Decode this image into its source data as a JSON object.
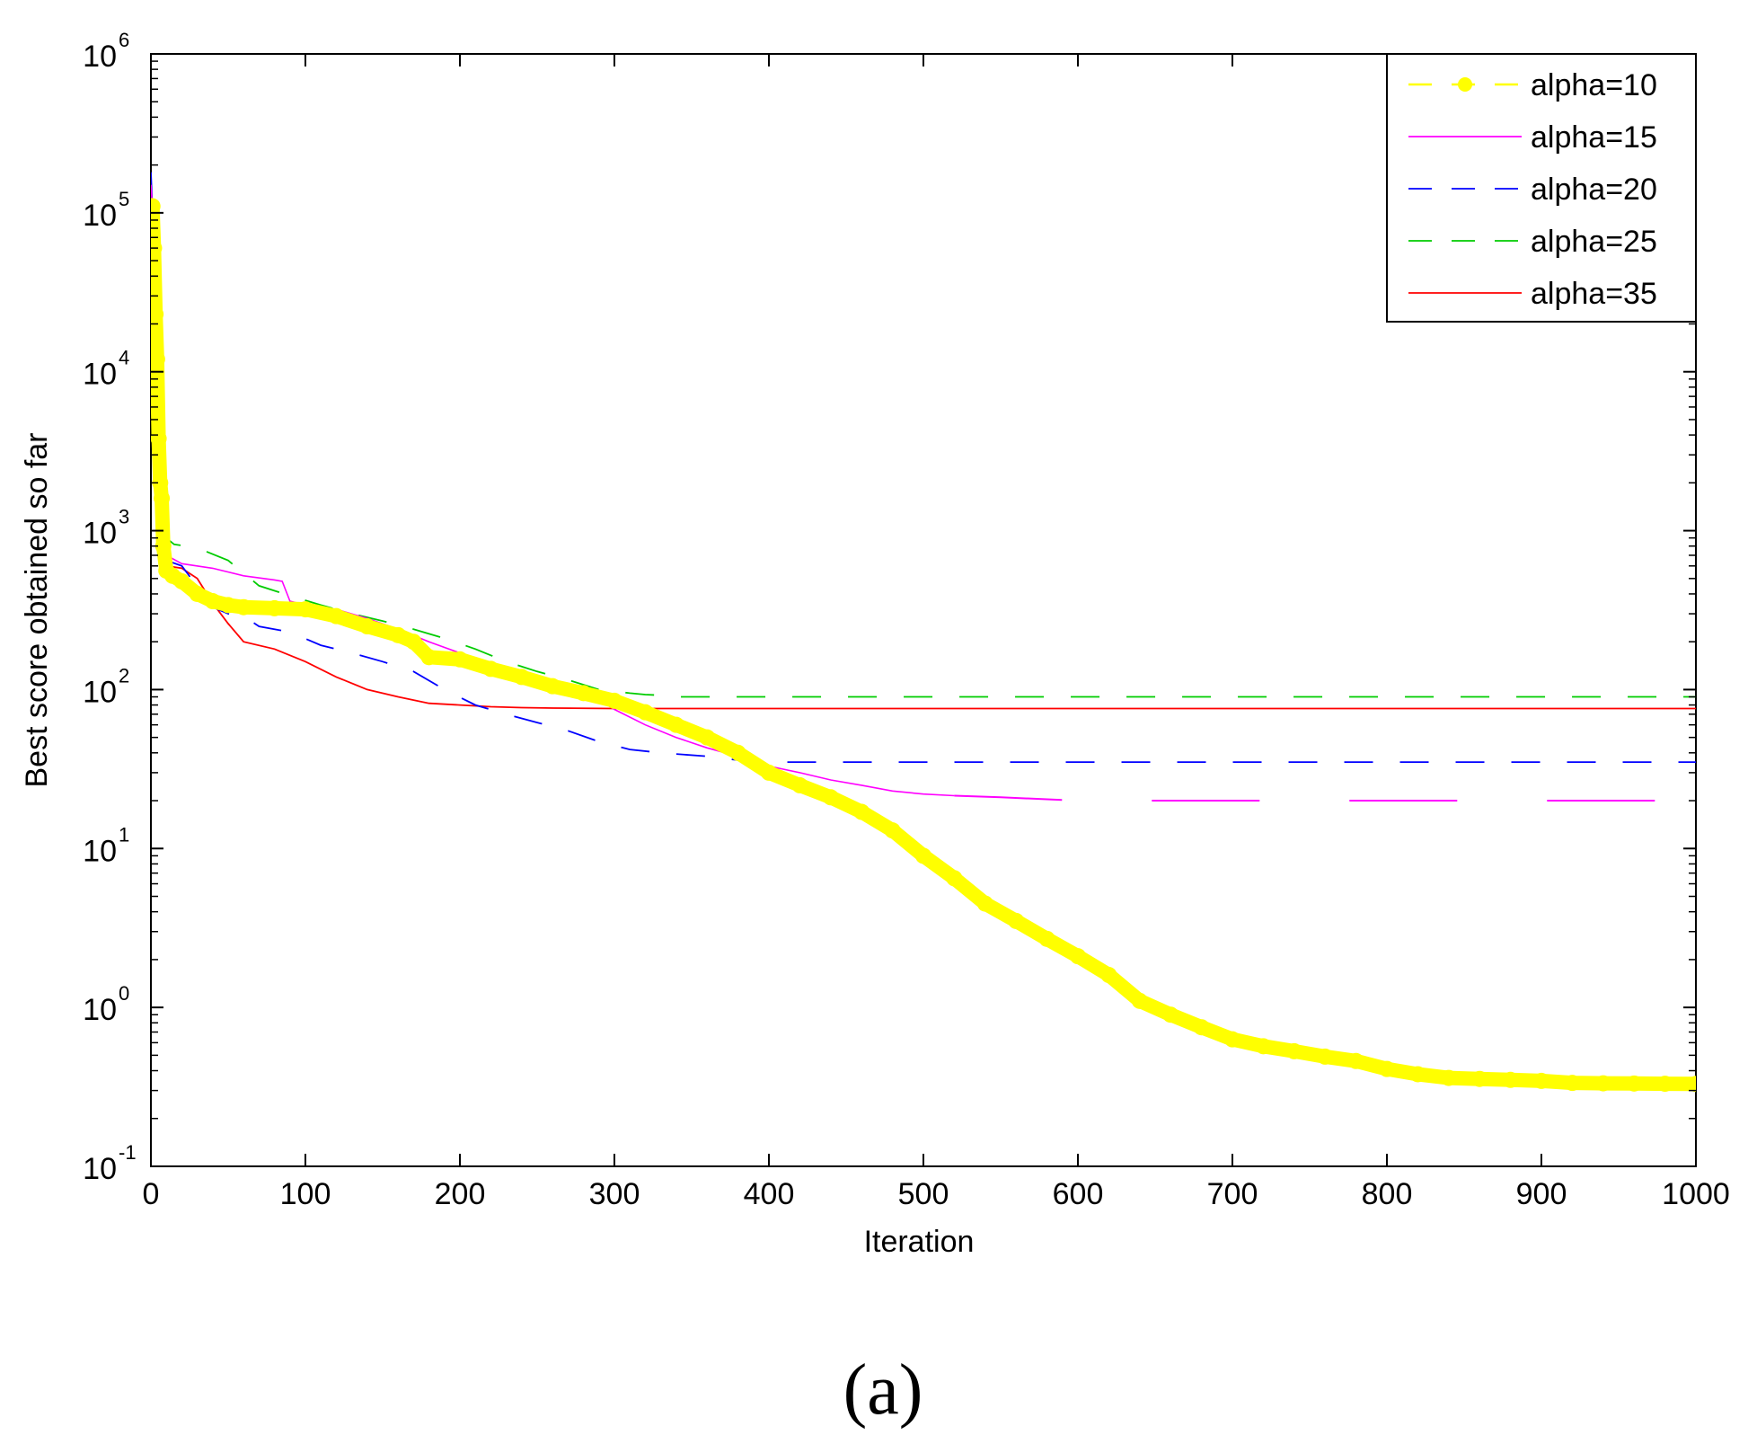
{
  "chart_data": {
    "type": "line",
    "xlabel": "Iteration",
    "ylabel": "Best score obtained so far",
    "xlim": [
      0,
      1000
    ],
    "ylim": [
      0.1,
      1000000
    ],
    "yscale": "log",
    "xticks": [
      "0",
      "100",
      "200",
      "300",
      "400",
      "500",
      "600",
      "700",
      "800",
      "900",
      "1000"
    ],
    "yticks": [
      {
        "base": "10",
        "exp": "-1"
      },
      {
        "base": "10",
        "exp": "0"
      },
      {
        "base": "10",
        "exp": "1"
      },
      {
        "base": "10",
        "exp": "2"
      },
      {
        "base": "10",
        "exp": "3"
      },
      {
        "base": "10",
        "exp": "4"
      },
      {
        "base": "10",
        "exp": "5"
      },
      {
        "base": "10",
        "exp": "6"
      }
    ],
    "legend_position": "top-right",
    "panel_label": "(a)",
    "series": [
      {
        "name": "alpha=10",
        "color": "#ffff00",
        "style": "dashed-dot-marker",
        "points": [
          [
            0,
            110000
          ],
          [
            1,
            110000
          ],
          [
            2,
            60000
          ],
          [
            3,
            23000
          ],
          [
            4,
            12000
          ],
          [
            5,
            3800
          ],
          [
            6,
            2000
          ],
          [
            7,
            1600
          ],
          [
            8,
            800
          ],
          [
            10,
            560
          ],
          [
            14,
            520
          ],
          [
            20,
            480
          ],
          [
            30,
            400
          ],
          [
            40,
            360
          ],
          [
            50,
            340
          ],
          [
            60,
            330
          ],
          [
            80,
            325
          ],
          [
            100,
            320
          ],
          [
            120,
            290
          ],
          [
            140,
            250
          ],
          [
            160,
            220
          ],
          [
            170,
            200
          ],
          [
            180,
            160
          ],
          [
            200,
            155
          ],
          [
            220,
            135
          ],
          [
            240,
            120
          ],
          [
            260,
            105
          ],
          [
            280,
            95
          ],
          [
            300,
            85
          ],
          [
            320,
            72
          ],
          [
            340,
            60
          ],
          [
            360,
            50
          ],
          [
            380,
            40
          ],
          [
            400,
            30
          ],
          [
            420,
            25
          ],
          [
            440,
            21
          ],
          [
            460,
            17
          ],
          [
            480,
            13
          ],
          [
            500,
            9
          ],
          [
            520,
            6.5
          ],
          [
            540,
            4.5
          ],
          [
            560,
            3.5
          ],
          [
            580,
            2.7
          ],
          [
            600,
            2.1
          ],
          [
            620,
            1.6
          ],
          [
            640,
            1.1
          ],
          [
            660,
            0.9
          ],
          [
            680,
            0.75
          ],
          [
            700,
            0.63
          ],
          [
            720,
            0.57
          ],
          [
            740,
            0.53
          ],
          [
            760,
            0.49
          ],
          [
            780,
            0.46
          ],
          [
            800,
            0.41
          ],
          [
            820,
            0.38
          ],
          [
            840,
            0.36
          ],
          [
            860,
            0.355
          ],
          [
            880,
            0.35
          ],
          [
            900,
            0.345
          ],
          [
            920,
            0.335
          ],
          [
            940,
            0.333
          ],
          [
            960,
            0.332
          ],
          [
            980,
            0.331
          ],
          [
            1000,
            0.33
          ]
        ]
      },
      {
        "name": "alpha=15",
        "color": "#ff00ff",
        "style": "solid-then-dashed",
        "points": [
          [
            0,
            150000
          ],
          [
            2,
            80000
          ],
          [
            4,
            5000
          ],
          [
            6,
            1500
          ],
          [
            8,
            900
          ],
          [
            10,
            700
          ],
          [
            20,
            620
          ],
          [
            40,
            580
          ],
          [
            60,
            520
          ],
          [
            80,
            490
          ],
          [
            85,
            480
          ],
          [
            90,
            360
          ],
          [
            100,
            340
          ],
          [
            120,
            320
          ],
          [
            140,
            280
          ],
          [
            160,
            240
          ],
          [
            180,
            200
          ],
          [
            200,
            170
          ],
          [
            220,
            145
          ],
          [
            240,
            125
          ],
          [
            260,
            110
          ],
          [
            280,
            100
          ],
          [
            300,
            75
          ],
          [
            320,
            60
          ],
          [
            340,
            50
          ],
          [
            360,
            43
          ],
          [
            380,
            38
          ],
          [
            400,
            33
          ],
          [
            420,
            30
          ],
          [
            440,
            27
          ],
          [
            460,
            25
          ],
          [
            480,
            23
          ],
          [
            500,
            22
          ],
          [
            520,
            21.5
          ],
          [
            550,
            21
          ],
          [
            600,
            20
          ],
          [
            650,
            20
          ],
          [
            700,
            20
          ],
          [
            800,
            20
          ],
          [
            900,
            20
          ],
          [
            980,
            20
          ]
        ]
      },
      {
        "name": "alpha=20",
        "color": "#0000ff",
        "style": "dashed",
        "points": [
          [
            0,
            180000
          ],
          [
            2,
            60000
          ],
          [
            4,
            5000
          ],
          [
            6,
            1500
          ],
          [
            8,
            800
          ],
          [
            10,
            650
          ],
          [
            20,
            600
          ],
          [
            40,
            330
          ],
          [
            50,
            300
          ],
          [
            60,
            290
          ],
          [
            70,
            250
          ],
          [
            90,
            230
          ],
          [
            110,
            190
          ],
          [
            130,
            170
          ],
          [
            150,
            150
          ],
          [
            170,
            130
          ],
          [
            190,
            100
          ],
          [
            210,
            80
          ],
          [
            230,
            70
          ],
          [
            250,
            62
          ],
          [
            270,
            55
          ],
          [
            290,
            47
          ],
          [
            310,
            42
          ],
          [
            330,
            40
          ],
          [
            360,
            38
          ],
          [
            380,
            36
          ],
          [
            400,
            35
          ],
          [
            500,
            35
          ],
          [
            600,
            35
          ],
          [
            700,
            35
          ],
          [
            800,
            35
          ],
          [
            900,
            35
          ],
          [
            1000,
            35
          ]
        ]
      },
      {
        "name": "alpha=25",
        "color": "#00cc00",
        "style": "dashed",
        "points": [
          [
            0,
            60000
          ],
          [
            2,
            40000
          ],
          [
            4,
            4000
          ],
          [
            6,
            1500
          ],
          [
            8,
            1100
          ],
          [
            10,
            900
          ],
          [
            15,
            820
          ],
          [
            30,
            780
          ],
          [
            50,
            650
          ],
          [
            70,
            450
          ],
          [
            90,
            390
          ],
          [
            110,
            340
          ],
          [
            130,
            300
          ],
          [
            150,
            270
          ],
          [
            170,
            240
          ],
          [
            190,
            210
          ],
          [
            210,
            180
          ],
          [
            230,
            150
          ],
          [
            250,
            130
          ],
          [
            270,
            115
          ],
          [
            290,
            100
          ],
          [
            310,
            95
          ],
          [
            320,
            93
          ],
          [
            330,
            92
          ],
          [
            340,
            90
          ],
          [
            400,
            90
          ],
          [
            500,
            90
          ],
          [
            600,
            90
          ],
          [
            700,
            90
          ],
          [
            800,
            90
          ],
          [
            900,
            90
          ],
          [
            1000,
            90
          ]
        ]
      },
      {
        "name": "alpha=35",
        "color": "#ff0000",
        "style": "solid",
        "points": [
          [
            0,
            100000
          ],
          [
            2,
            50000
          ],
          [
            4,
            3000
          ],
          [
            6,
            1200
          ],
          [
            8,
            700
          ],
          [
            10,
            600
          ],
          [
            20,
            580
          ],
          [
            30,
            500
          ],
          [
            40,
            350
          ],
          [
            50,
            260
          ],
          [
            60,
            200
          ],
          [
            80,
            180
          ],
          [
            100,
            150
          ],
          [
            120,
            120
          ],
          [
            140,
            100
          ],
          [
            160,
            90
          ],
          [
            180,
            82
          ],
          [
            200,
            80
          ],
          [
            220,
            78
          ],
          [
            240,
            77
          ],
          [
            260,
            76.5
          ],
          [
            300,
            76
          ],
          [
            400,
            76
          ],
          [
            500,
            76
          ],
          [
            600,
            76
          ],
          [
            700,
            76
          ],
          [
            800,
            76
          ],
          [
            900,
            76
          ],
          [
            1000,
            76
          ]
        ]
      }
    ]
  }
}
